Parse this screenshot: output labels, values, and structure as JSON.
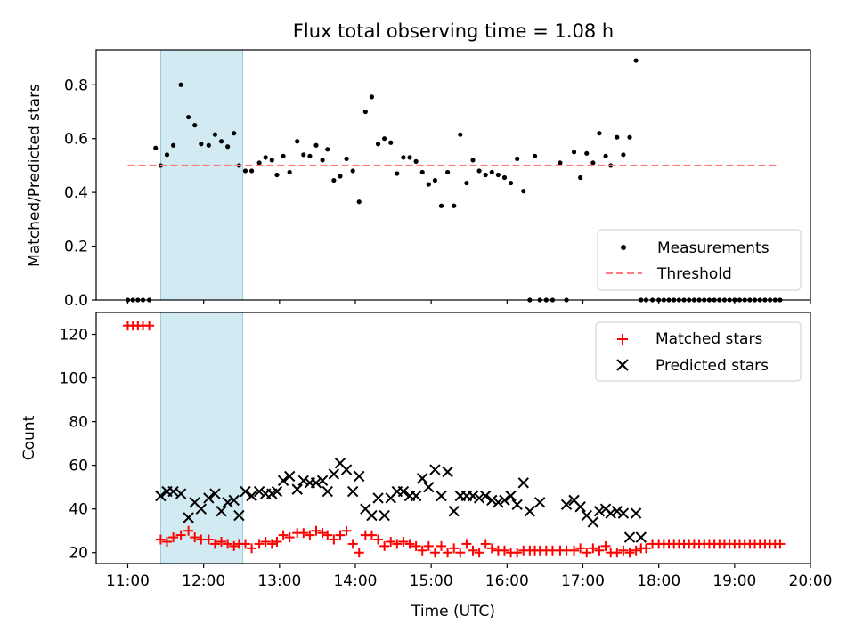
{
  "chart_data": [
    {
      "type": "scatter",
      "title": "Flux total observing time = 1.08 h",
      "xlabel": "",
      "ylabel": "Matched/Predicted stars",
      "xlim": [
        "10:35",
        "20:00"
      ],
      "ylim": [
        0,
        0.93
      ],
      "x_ticks": [
        "11:00",
        "12:00",
        "13:00",
        "14:00",
        "15:00",
        "16:00",
        "17:00",
        "18:00",
        "19:00",
        "20:00"
      ],
      "y_ticks": [
        "0.0",
        "0.2",
        "0.4",
        "0.6",
        "0.8"
      ],
      "highlight_span": [
        "11:26",
        "12:31"
      ],
      "legend_position": "lower-right",
      "series": [
        {
          "name": "Measurements",
          "color": "#000000",
          "marker": "dot",
          "x": [
            "11:00",
            "11:04",
            "11:08",
            "11:12",
            "11:17",
            "11:22",
            "11:26",
            "11:31",
            "11:36",
            "11:42",
            "11:48",
            "11:53",
            "11:58",
            "12:04",
            "12:09",
            "12:14",
            "12:19",
            "12:24",
            "12:28",
            "12:33",
            "12:38",
            "12:44",
            "12:49",
            "12:54",
            "12:58",
            "13:03",
            "13:08",
            "13:14",
            "13:19",
            "13:24",
            "13:29",
            "13:34",
            "13:38",
            "13:43",
            "13:48",
            "13:53",
            "13:58",
            "14:03",
            "14:08",
            "14:13",
            "14:18",
            "14:23",
            "14:28",
            "14:33",
            "14:38",
            "14:43",
            "14:48",
            "14:53",
            "14:58",
            "15:03",
            "15:08",
            "15:13",
            "15:18",
            "15:23",
            "15:28",
            "15:33",
            "15:38",
            "15:43",
            "15:48",
            "15:53",
            "15:58",
            "16:03",
            "16:08",
            "16:13",
            "16:18",
            "16:22",
            "16:26",
            "16:31",
            "16:36",
            "16:42",
            "16:47",
            "16:53",
            "16:58",
            "17:03",
            "17:08",
            "17:13",
            "17:18",
            "17:22",
            "17:27",
            "17:32",
            "17:37",
            "17:42",
            "17:46",
            "17:50",
            "17:55",
            "18:00",
            "18:04",
            "18:08",
            "18:12",
            "18:16",
            "18:20",
            "18:24",
            "18:28",
            "18:32",
            "18:36",
            "18:40",
            "18:44",
            "18:48",
            "18:52",
            "18:56",
            "19:00",
            "19:04",
            "19:08",
            "19:12",
            "19:16",
            "19:20",
            "19:24",
            "19:28",
            "19:32",
            "19:36"
          ],
          "y": [
            0,
            0,
            0,
            0,
            0,
            0.565,
            0.5,
            0.54,
            0.575,
            0.8,
            0.68,
            0.65,
            0.58,
            0.575,
            0.615,
            0.59,
            0.57,
            0.62,
            0.5,
            0.48,
            0.48,
            0.51,
            0.53,
            0.52,
            0.465,
            0.535,
            0.475,
            0.59,
            0.54,
            0.535,
            0.575,
            0.52,
            0.56,
            0.445,
            0.46,
            0.525,
            0.48,
            0.365,
            0.7,
            0.755,
            0.58,
            0.6,
            0.585,
            0.47,
            0.53,
            0.53,
            0.515,
            0.475,
            0.43,
            0.445,
            0.35,
            0.475,
            0.35,
            0.615,
            0.435,
            0.52,
            0.48,
            0.465,
            0.475,
            0.465,
            0.455,
            0.435,
            0.525,
            0.405,
            0,
            0.535,
            0,
            0,
            0,
            0.51,
            0,
            0.55,
            0.455,
            0.545,
            0.51,
            0.62,
            0.535,
            0.5,
            0.605,
            0.54,
            0.605,
            0.89,
            0,
            0,
            0,
            0,
            0,
            0,
            0,
            0,
            0,
            0,
            0,
            0,
            0,
            0,
            0,
            0,
            0,
            0,
            0,
            0,
            0,
            0,
            0,
            0,
            0,
            0,
            0,
            0
          ]
        },
        {
          "name": "Threshold",
          "color": "#ff7b7b",
          "line_style": "dashed",
          "x": [
            "11:00",
            "19:35"
          ],
          "y": [
            0.5,
            0.5
          ]
        }
      ]
    },
    {
      "type": "scatter",
      "title": "",
      "xlabel": "Time (UTC)",
      "ylabel": "Count",
      "xlim": [
        "10:35",
        "20:00"
      ],
      "ylim": [
        15,
        130
      ],
      "x_ticks": [
        "11:00",
        "12:00",
        "13:00",
        "14:00",
        "15:00",
        "16:00",
        "17:00",
        "18:00",
        "19:00",
        "20:00"
      ],
      "y_ticks": [
        "20",
        "40",
        "60",
        "80",
        "100",
        "120"
      ],
      "highlight_span": [
        "11:26",
        "12:31"
      ],
      "legend_position": "upper-right",
      "series": [
        {
          "name": "Matched stars",
          "color": "#ff0000",
          "marker": "plus",
          "x": [
            "11:00",
            "11:04",
            "11:08",
            "11:12",
            "11:17",
            "11:26",
            "11:31",
            "11:36",
            "11:42",
            "11:48",
            "11:53",
            "11:58",
            "12:04",
            "12:09",
            "12:14",
            "12:19",
            "12:24",
            "12:28",
            "12:33",
            "12:38",
            "12:44",
            "12:49",
            "12:54",
            "12:58",
            "13:03",
            "13:08",
            "13:14",
            "13:19",
            "13:24",
            "13:29",
            "13:34",
            "13:38",
            "13:43",
            "13:48",
            "13:53",
            "13:58",
            "14:03",
            "14:08",
            "14:13",
            "14:18",
            "14:23",
            "14:28",
            "14:33",
            "14:38",
            "14:43",
            "14:48",
            "14:53",
            "14:58",
            "15:03",
            "15:08",
            "15:13",
            "15:18",
            "15:23",
            "15:28",
            "15:33",
            "15:38",
            "15:43",
            "15:48",
            "15:53",
            "15:58",
            "16:03",
            "16:08",
            "16:13",
            "16:18",
            "16:22",
            "16:26",
            "16:31",
            "16:36",
            "16:42",
            "16:47",
            "16:53",
            "16:58",
            "17:03",
            "17:08",
            "17:13",
            "17:18",
            "17:22",
            "17:27",
            "17:32",
            "17:37",
            "17:42",
            "17:46",
            "17:50",
            "17:55",
            "18:00",
            "18:04",
            "18:08",
            "18:12",
            "18:16",
            "18:20",
            "18:24",
            "18:28",
            "18:32",
            "18:36",
            "18:40",
            "18:44",
            "18:48",
            "18:52",
            "18:56",
            "19:00",
            "19:04",
            "19:08",
            "19:12",
            "19:16",
            "19:20",
            "19:24",
            "19:28",
            "19:32",
            "19:36"
          ],
          "y": [
            124,
            124,
            124,
            124,
            124,
            26,
            25,
            27,
            28,
            30,
            27,
            26,
            26,
            24,
            25,
            24,
            23,
            24,
            24,
            22,
            24,
            25,
            24,
            25,
            28,
            27,
            29,
            29,
            28,
            30,
            29,
            28,
            26,
            28,
            30,
            24,
            20,
            28,
            28,
            26,
            23,
            25,
            24,
            25,
            24,
            23,
            21,
            23,
            20,
            23,
            20,
            22,
            20,
            24,
            21,
            20,
            24,
            22,
            21,
            21,
            20,
            20,
            21,
            21,
            21,
            21,
            21,
            21,
            21,
            21,
            21,
            22,
            20,
            22,
            21,
            23,
            20,
            20,
            21,
            20,
            21,
            22,
            22,
            24,
            24,
            24,
            24,
            24,
            24,
            24,
            24,
            24,
            24,
            24,
            24,
            24,
            24,
            24,
            24,
            24,
            24,
            24,
            24,
            24,
            24,
            24,
            24,
            24,
            24
          ]
        },
        {
          "name": "Predicted stars",
          "color": "#000000",
          "marker": "x",
          "x": [
            "11:26",
            "11:31",
            "11:36",
            "11:42",
            "11:48",
            "11:53",
            "11:58",
            "12:04",
            "12:09",
            "12:14",
            "12:19",
            "12:24",
            "12:28",
            "12:33",
            "12:38",
            "12:44",
            "12:49",
            "12:54",
            "12:58",
            "13:03",
            "13:08",
            "13:14",
            "13:19",
            "13:24",
            "13:29",
            "13:34",
            "13:38",
            "13:43",
            "13:48",
            "13:53",
            "13:58",
            "14:03",
            "14:08",
            "14:13",
            "14:18",
            "14:23",
            "14:28",
            "14:33",
            "14:38",
            "14:43",
            "14:48",
            "14:53",
            "14:58",
            "15:03",
            "15:08",
            "15:13",
            "15:18",
            "15:23",
            "15:28",
            "15:33",
            "15:38",
            "15:43",
            "15:48",
            "15:53",
            "15:58",
            "16:03",
            "16:08",
            "16:13",
            "16:18",
            "16:26",
            "16:47",
            "16:53",
            "16:58",
            "17:03",
            "17:08",
            "17:13",
            "17:18",
            "17:22",
            "17:27",
            "17:32",
            "17:37",
            "17:42",
            "17:46"
          ],
          "y": [
            46,
            48,
            48,
            47,
            36,
            43,
            40,
            45,
            47,
            39,
            43,
            44,
            37,
            48,
            46,
            48,
            47,
            47,
            48,
            53,
            55,
            49,
            53,
            52,
            52,
            53,
            48,
            56,
            61,
            58,
            48,
            55,
            40,
            37,
            45,
            37,
            45,
            48,
            48,
            46,
            46,
            54,
            50,
            58,
            46,
            57,
            39,
            46,
            46,
            46,
            45,
            46,
            44,
            43,
            44,
            46,
            42,
            52,
            39,
            43,
            42,
            44,
            41,
            37,
            34,
            39,
            40,
            38,
            39,
            38,
            27,
            38,
            27
          ]
        }
      ]
    }
  ]
}
